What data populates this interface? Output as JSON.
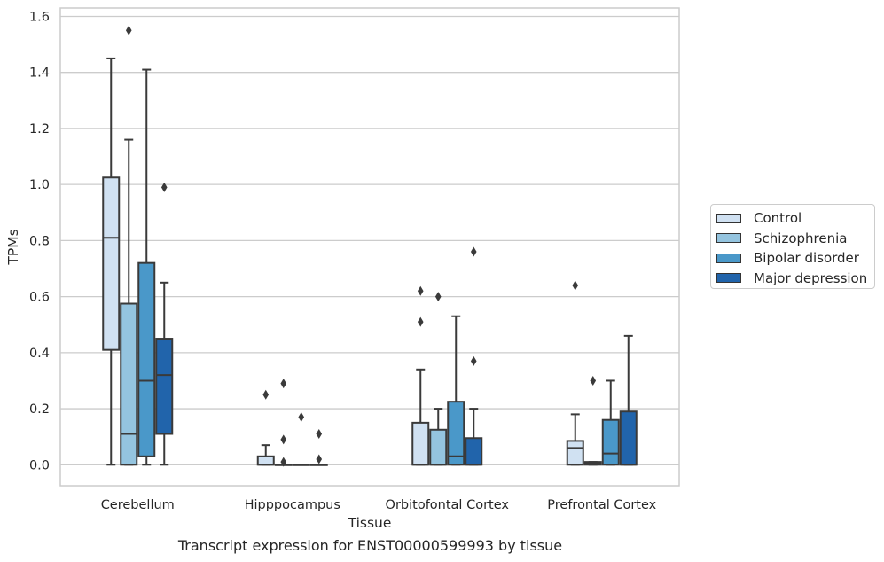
{
  "caption": "Transcript expression for ENST00000599993 by tissue",
  "chart_data": {
    "type": "boxplot",
    "xlabel": "Tissue",
    "ylabel": "TPMs",
    "ylim": [
      -0.075,
      1.63
    ],
    "yticks": [
      "0.0",
      "0.2",
      "0.4",
      "0.6",
      "0.8",
      "1.0",
      "1.2",
      "1.4",
      "1.6"
    ],
    "grid": "horizontal",
    "legend_placement": "right",
    "categories": [
      "Cerebellum",
      "Hipppocampus",
      "Orbitofontal Cortex",
      "Prefrontal Cortex"
    ],
    "series": [
      {
        "name": "Control",
        "color": "#d0e1f2",
        "boxes": [
          {
            "whisker_low": 0.0,
            "q1": 0.41,
            "median": 0.81,
            "q3": 1.025,
            "whisker_high": 1.45,
            "outliers": []
          },
          {
            "whisker_low": 0.0,
            "q1": 0.0,
            "median": 0.0,
            "q3": 0.03,
            "whisker_high": 0.07,
            "outliers": [
              0.25
            ]
          },
          {
            "whisker_low": 0.0,
            "q1": 0.0,
            "median": 0.0,
            "q3": 0.15,
            "whisker_high": 0.34,
            "outliers": [
              0.51,
              0.62
            ]
          },
          {
            "whisker_low": 0.0,
            "q1": 0.0,
            "median": 0.06,
            "q3": 0.085,
            "whisker_high": 0.18,
            "outliers": [
              0.64
            ]
          }
        ]
      },
      {
        "name": "Schizophrenia",
        "color": "#94c4df",
        "boxes": [
          {
            "whisker_low": 0.0,
            "q1": 0.0,
            "median": 0.11,
            "q3": 0.575,
            "whisker_high": 1.16,
            "outliers": [
              1.55
            ]
          },
          {
            "whisker_low": 0.0,
            "q1": 0.0,
            "median": 0.0,
            "q3": 0.0,
            "whisker_high": 0.0,
            "outliers": [
              0.01,
              0.09,
              0.29
            ]
          },
          {
            "whisker_low": 0.0,
            "q1": 0.0,
            "median": 0.0,
            "q3": 0.125,
            "whisker_high": 0.2,
            "outliers": [
              0.6
            ]
          },
          {
            "whisker_low": 0.0,
            "q1": 0.0,
            "median": 0.005,
            "q3": 0.01,
            "whisker_high": 0.01,
            "outliers": [
              0.3
            ]
          }
        ]
      },
      {
        "name": "Bipolar disorder",
        "color": "#4a98c9",
        "boxes": [
          {
            "whisker_low": 0.0,
            "q1": 0.03,
            "median": 0.3,
            "q3": 0.72,
            "whisker_high": 1.41,
            "outliers": []
          },
          {
            "whisker_low": 0.0,
            "q1": 0.0,
            "median": 0.0,
            "q3": 0.0,
            "whisker_high": 0.0,
            "outliers": [
              0.17
            ]
          },
          {
            "whisker_low": 0.0,
            "q1": 0.0,
            "median": 0.03,
            "q3": 0.225,
            "whisker_high": 0.53,
            "outliers": []
          },
          {
            "whisker_low": 0.0,
            "q1": 0.0,
            "median": 0.04,
            "q3": 0.16,
            "whisker_high": 0.3,
            "outliers": []
          }
        ]
      },
      {
        "name": "Major depression",
        "color": "#2164ab",
        "boxes": [
          {
            "whisker_low": 0.0,
            "q1": 0.11,
            "median": 0.32,
            "q3": 0.45,
            "whisker_high": 0.65,
            "outliers": [
              0.99
            ]
          },
          {
            "whisker_low": 0.0,
            "q1": 0.0,
            "median": 0.0,
            "q3": 0.0,
            "whisker_high": 0.0,
            "outliers": [
              0.02,
              0.11
            ]
          },
          {
            "whisker_low": 0.0,
            "q1": 0.0,
            "median": 0.0,
            "q3": 0.095,
            "whisker_high": 0.2,
            "outliers": [
              0.37,
              0.76
            ]
          },
          {
            "whisker_low": 0.0,
            "q1": 0.0,
            "median": 0.0,
            "q3": 0.19,
            "whisker_high": 0.46,
            "outliers": []
          }
        ]
      }
    ]
  }
}
